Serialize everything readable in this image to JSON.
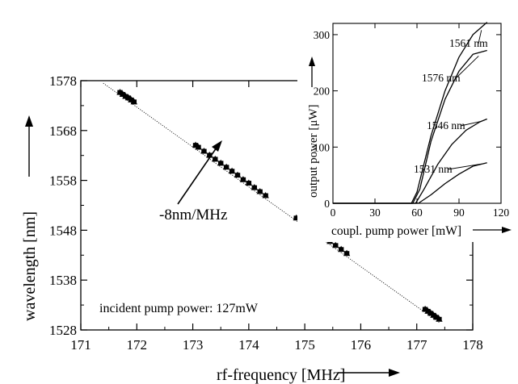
{
  "chart_data": [
    {
      "type": "scatter",
      "title": "",
      "xlabel": "rf-frequency [MHz]",
      "ylabel": "wavelength [nm]",
      "xlim": [
        171,
        178
      ],
      "ylim": [
        1528,
        1578
      ],
      "xticks": [
        "171",
        "172",
        "173",
        "174",
        "175",
        "176",
        "177",
        "178"
      ],
      "yticks": [
        "1528",
        "1538",
        "1548",
        "1558",
        "1568",
        "1578"
      ],
      "grid": false,
      "fit_line": {
        "x": [
          171.4,
          177.4
        ],
        "y": [
          1577.5,
          1529.5
        ]
      },
      "series": [
        {
          "x": [
            171.7,
            171.75,
            171.8,
            171.85,
            171.9,
            171.95,
            173.05,
            173.1,
            173.2,
            173.3,
            173.4,
            173.5,
            173.6,
            173.7,
            173.8,
            173.9,
            174.0,
            174.1,
            174.2,
            174.3,
            174.85,
            174.95,
            175.05,
            175.15,
            175.25,
            175.35,
            175.45,
            175.55,
            175.65,
            175.75,
            177.15,
            177.2,
            177.25,
            177.3,
            177.35,
            177.4
          ],
          "y": [
            1575.7,
            1575.3,
            1574.9,
            1574.6,
            1574.2,
            1573.8,
            1565.1,
            1564.7,
            1563.9,
            1563.1,
            1562.3,
            1561.5,
            1560.7,
            1559.9,
            1559.1,
            1558.2,
            1557.5,
            1556.6,
            1555.8,
            1555.0,
            1550.5,
            1549.8,
            1549.0,
            1548.2,
            1547.4,
            1546.6,
            1545.8,
            1545.0,
            1544.2,
            1543.4,
            1532.2,
            1531.8,
            1531.4,
            1531.0,
            1530.6,
            1530.2
          ]
        }
      ],
      "annotations": [
        "-8nm/MHz",
        "incident pump power: 127mW"
      ]
    },
    {
      "type": "line",
      "title": "",
      "xlabel": "coupl. pump power [mW]",
      "ylabel": "output power [μW]",
      "xlim": [
        0,
        120
      ],
      "ylim": [
        0,
        320
      ],
      "xticks": [
        "0",
        "30",
        "60",
        "90",
        "120"
      ],
      "yticks": [
        "0",
        "100",
        "200",
        "300"
      ],
      "grid": false,
      "series": [
        {
          "name": "1561 nm",
          "x": [
            0,
            55,
            56,
            60,
            70,
            80,
            90,
            100,
            110
          ],
          "y": [
            0,
            0,
            0,
            20,
            120,
            200,
            260,
            300,
            322
          ]
        },
        {
          "name": "1576 nm",
          "x": [
            0,
            56,
            57,
            62,
            70,
            80,
            90,
            100,
            110
          ],
          "y": [
            0,
            0,
            0,
            25,
            110,
            185,
            235,
            265,
            272
          ]
        },
        {
          "name": "1546 nm",
          "x": [
            0,
            58,
            59,
            65,
            75,
            85,
            95,
            105,
            110
          ],
          "y": [
            0,
            0,
            0,
            25,
            70,
            105,
            130,
            145,
            150
          ]
        },
        {
          "name": "1531 nm",
          "x": [
            0,
            60,
            61,
            70,
            80,
            90,
            100,
            110
          ],
          "y": [
            0,
            0,
            0,
            15,
            35,
            52,
            66,
            72
          ]
        }
      ]
    }
  ],
  "labels": {
    "main_xlabel": "rf-frequency [MHz]",
    "main_ylabel": "wavelength [nm]",
    "slope": "-8nm/MHz",
    "incident": "incident pump power: 127mW",
    "inset_xlabel": "coupl. pump power [mW]",
    "inset_ylabel": "output power [μW]"
  }
}
